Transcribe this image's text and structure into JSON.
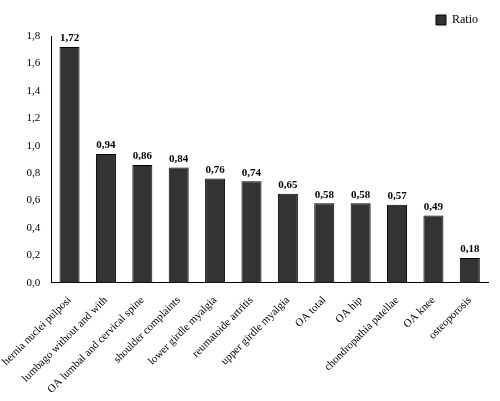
{
  "chart_data": {
    "type": "bar",
    "categories": [
      "hernia nuclei pulposi",
      "lumbago without and with",
      "OA lumbal and cervical spine",
      "shoulder complaints",
      "lower girdle myalgia",
      "reumatoide artritis",
      "upper girdle myalgia",
      "OA total",
      "OA hip",
      "chondropathia patellae",
      "OA knee",
      "osteoporosis"
    ],
    "series": [
      {
        "name": "Ratio",
        "color": "#333333",
        "values": [
          1.72,
          0.94,
          0.86,
          0.84,
          0.76,
          0.74,
          0.65,
          0.58,
          0.58,
          0.57,
          0.49,
          0.18
        ],
        "value_labels": [
          "1,72",
          "0,94",
          "0,86",
          "0,84",
          "0,76",
          "0,74",
          "0,65",
          "0,58",
          "0,58",
          "0,57",
          "0,49",
          "0,18"
        ]
      }
    ],
    "ylim": [
      0,
      1.8
    ],
    "yticks": [
      {
        "value": 0,
        "label": "0,0"
      },
      {
        "value": 0.2,
        "label": "0,2"
      },
      {
        "value": 0.4,
        "label": "0,4"
      },
      {
        "value": 0.6,
        "label": "0,6"
      },
      {
        "value": 0.8,
        "label": "0,8"
      },
      {
        "value": 1.0,
        "label": "1,0"
      },
      {
        "value": 1.2,
        "label": "1,2"
      },
      {
        "value": 1.4,
        "label": "1,4"
      },
      {
        "value": 1.6,
        "label": "1,6"
      },
      {
        "value": 1.8,
        "label": "1,8"
      }
    ],
    "grid": false,
    "legend": "upper right",
    "data_labels": true
  }
}
